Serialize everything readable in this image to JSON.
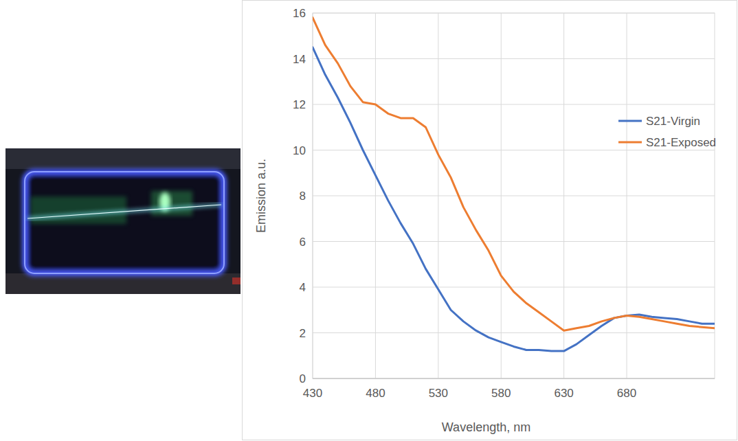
{
  "chart_data": {
    "type": "line",
    "x_label": "Wavelength, nm",
    "y_label": "Emission a.u.",
    "x": [
      430,
      440,
      450,
      460,
      470,
      480,
      490,
      500,
      510,
      520,
      530,
      540,
      550,
      560,
      570,
      580,
      590,
      600,
      610,
      620,
      630,
      640,
      650,
      660,
      670,
      680,
      690,
      700,
      710,
      720,
      730,
      740,
      750
    ],
    "series": [
      {
        "name": "S21-Virgin",
        "color": "#4472c4",
        "values": [
          14.5,
          13.3,
          12.3,
          11.2,
          10.0,
          8.9,
          7.8,
          6.8,
          5.9,
          4.8,
          3.9,
          3.0,
          2.5,
          2.1,
          1.8,
          1.6,
          1.4,
          1.25,
          1.25,
          1.2,
          1.2,
          1.5,
          1.9,
          2.3,
          2.65,
          2.75,
          2.8,
          2.7,
          2.65,
          2.6,
          2.5,
          2.4,
          2.4
        ]
      },
      {
        "name": "S21-Exposed",
        "color": "#ed7d31",
        "values": [
          15.8,
          14.6,
          13.8,
          12.8,
          12.1,
          12.0,
          11.6,
          11.4,
          11.4,
          11.0,
          9.8,
          8.8,
          7.5,
          6.5,
          5.6,
          4.5,
          3.8,
          3.3,
          2.9,
          2.5,
          2.1,
          2.2,
          2.3,
          2.5,
          2.65,
          2.75,
          2.7,
          2.6,
          2.5,
          2.4,
          2.3,
          2.25,
          2.2
        ]
      }
    ],
    "xlim": [
      430,
      750
    ],
    "xticks": [
      430,
      480,
      530,
      580,
      630,
      680
    ],
    "ylim": [
      0,
      16
    ],
    "yticks": [
      0,
      2,
      4,
      6,
      8,
      10,
      12,
      14,
      16
    ],
    "grid": true,
    "legend": "upper right"
  }
}
